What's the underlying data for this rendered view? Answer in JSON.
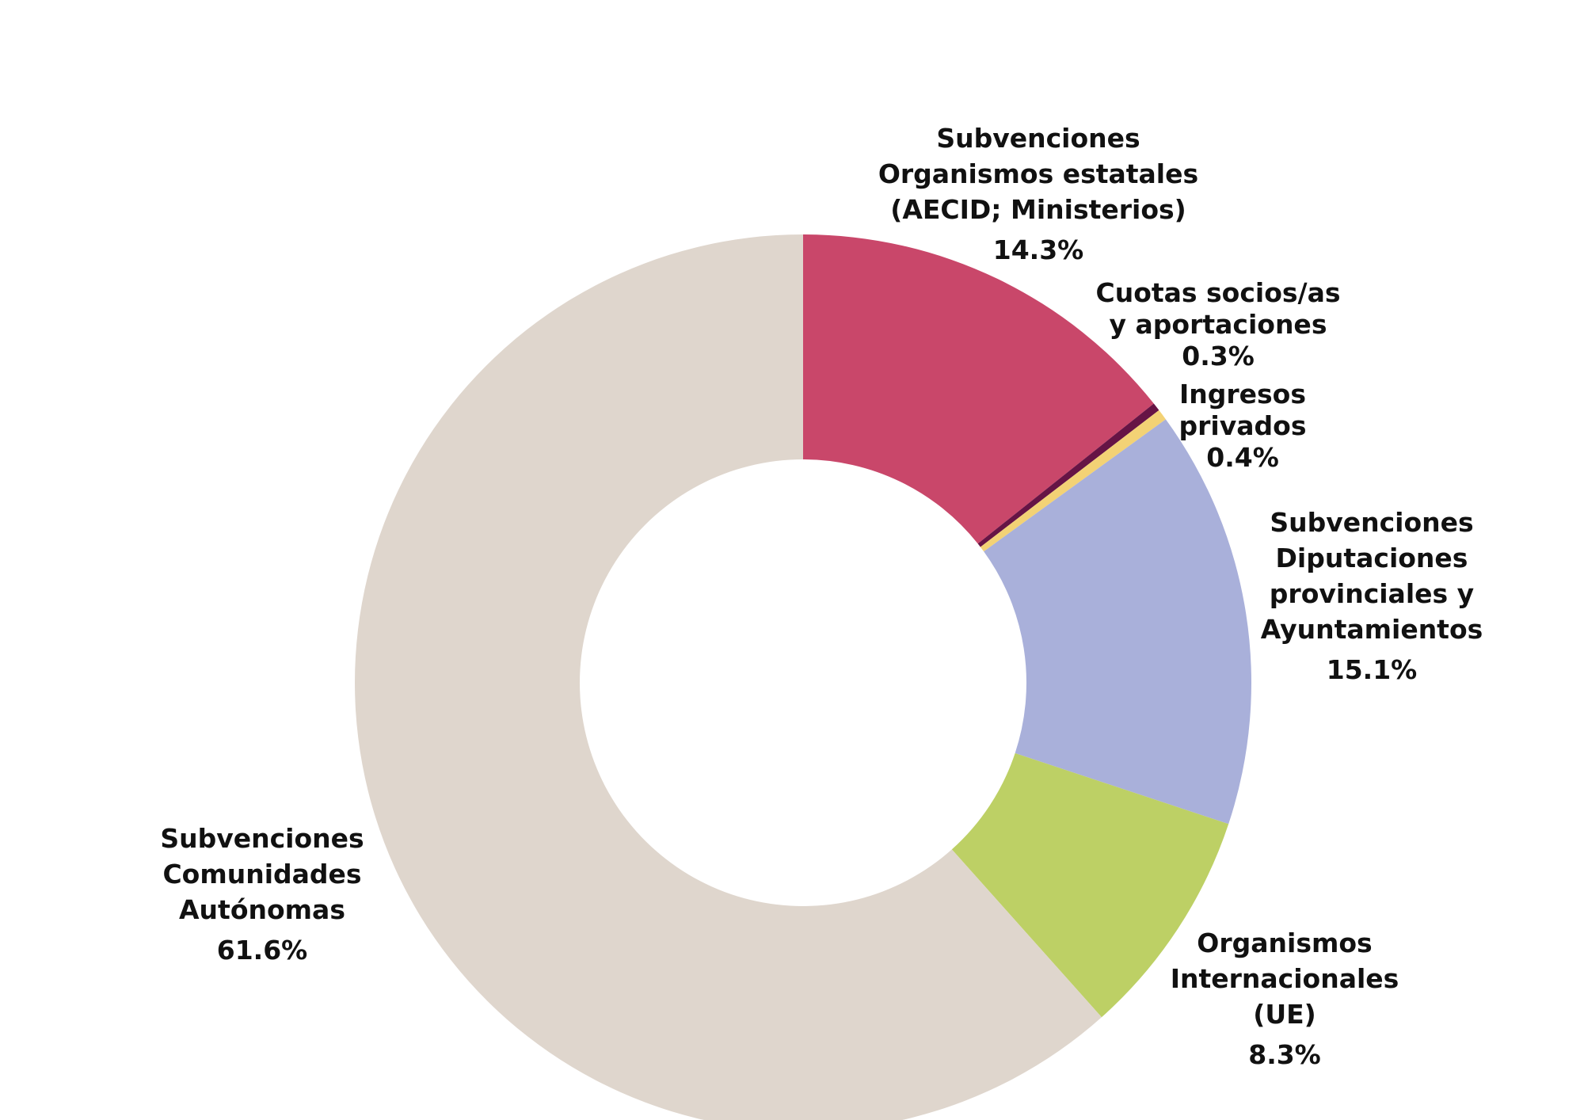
{
  "chart_data": {
    "type": "pie",
    "donut": true,
    "start": "top",
    "direction": "clockwise",
    "slices": [
      {
        "label": [
          "Subvenciones",
          "Organismos estatales",
          "(AECID; Ministerios)"
        ],
        "value": 14.3,
        "value_label": "14.3%",
        "color": "#C9476A"
      },
      {
        "label": [
          "Cuotas socios/as",
          "y aportaciones"
        ],
        "value": 0.3,
        "value_label": "0.3%",
        "color": "#661445"
      },
      {
        "label": [
          "Ingresos",
          "privados"
        ],
        "value": 0.4,
        "value_label": "0.4%",
        "color": "#F3D275"
      },
      {
        "label": [
          "Subvenciones",
          "Diputaciones",
          "provinciales y",
          "Ayuntamientos"
        ],
        "value": 15.1,
        "value_label": "15.1%",
        "color": "#A9B0DA"
      },
      {
        "label": [
          "Organismos",
          "Internacionales",
          "(UE)"
        ],
        "value": 8.3,
        "value_label": "8.3%",
        "color": "#BDD065"
      },
      {
        "label": [
          "Subvenciones",
          "Comunidades",
          "Autónomas"
        ],
        "value": 61.6,
        "value_label": "61.6%",
        "color": "#DFD6CD"
      }
    ]
  }
}
